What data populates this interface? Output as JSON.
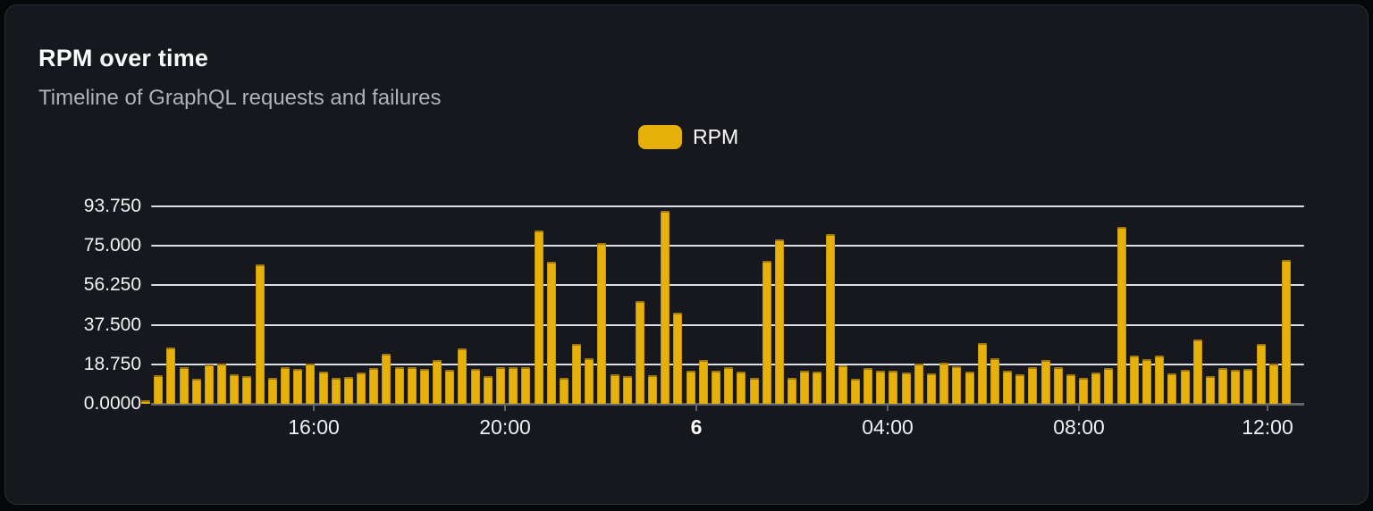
{
  "header": {
    "title": "RPM over time",
    "subtitle": "Timeline of GraphQL requests and failures"
  },
  "legend": {
    "position": "top-center",
    "items": [
      {
        "label": "RPM",
        "color": "#e6b00a"
      }
    ]
  },
  "colors": {
    "bar": "#e7b10b",
    "card_background": "#16181d",
    "page_background": "#060709",
    "card_border": "#2a2d34",
    "gridline": "#dce1e7",
    "axis": "#61656c",
    "title_text": "#fafbfc",
    "subtitle_text": "#aeb3b9",
    "tick_text": "#eef0f3"
  },
  "chart_data": {
    "type": "bar",
    "title": "RPM over time",
    "subtitle": "Timeline of GraphQL requests and failures",
    "series_name": "RPM",
    "xlabel": "",
    "ylabel": "",
    "grid": true,
    "ylim": [
      0,
      102.2
    ],
    "y_ticks": [
      {
        "value": 0,
        "label": "0.0000"
      },
      {
        "value": 18.75,
        "label": "18.750"
      },
      {
        "value": 37.5,
        "label": "37.500"
      },
      {
        "value": 56.25,
        "label": "56.250"
      },
      {
        "value": 75,
        "label": "75.000"
      },
      {
        "value": 93.75,
        "label": "93.750"
      }
    ],
    "x_ticks": [
      {
        "label": "16:00",
        "pos_pct": 14.11,
        "bold": false
      },
      {
        "label": "20:00",
        "pos_pct": 30.7,
        "bold": false
      },
      {
        "label": "6",
        "pos_pct": 47.29,
        "bold": true
      },
      {
        "label": "04:00",
        "pos_pct": 63.88,
        "bold": false
      },
      {
        "label": "08:00",
        "pos_pct": 80.47,
        "bold": false
      },
      {
        "label": "12:00",
        "pos_pct": 96.82,
        "bold": false
      }
    ],
    "values": [
      1.6,
      13.5,
      26.6,
      17.6,
      11.8,
      18.6,
      18.9,
      13.9,
      13.1,
      66.0,
      12.4,
      17.2,
      16.5,
      19.2,
      15.3,
      12.5,
      12.9,
      14.8,
      16.8,
      23.6,
      17.5,
      17.3,
      16.5,
      20.6,
      16.2,
      26.1,
      16.5,
      13.2,
      17.2,
      17.2,
      17.3,
      82.3,
      67.6,
      12.1,
      28.6,
      21.8,
      76.4,
      14.2,
      13.2,
      48.7,
      13.5,
      91.6,
      43.2,
      15.6,
      20.6,
      15.6,
      17.5,
      15.1,
      12.5,
      67.7,
      78.1,
      12.1,
      15.8,
      15.2,
      80.4,
      18.2,
      11.9,
      17.0,
      15.5,
      15.8,
      14.9,
      18.9,
      14.3,
      19.5,
      17.8,
      15.1,
      28.7,
      21.7,
      15.9,
      13.9,
      17.6,
      20.6,
      17.3,
      14.2,
      12.2,
      14.8,
      16.8,
      84.1,
      23.0,
      21.2,
      22.9,
      14.5,
      16.0,
      30.7,
      13.1,
      16.9,
      16.3,
      16.6,
      28.3,
      18.9,
      68.3
    ]
  }
}
